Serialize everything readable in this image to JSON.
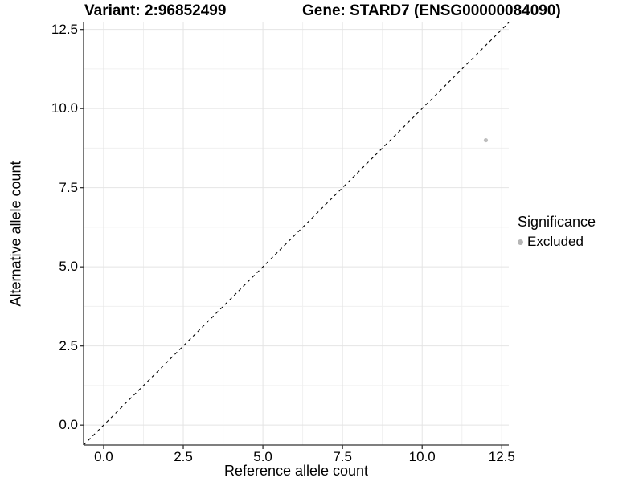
{
  "chart_data": {
    "type": "scatter",
    "titles": {
      "variant": "Variant: 2:96852499",
      "gene": "Gene: STARD7 (ENSG00000084090)"
    },
    "xlabel": "Reference allele count",
    "ylabel": "Alternative allele count",
    "xlim": [
      -0.63,
      12.72
    ],
    "ylim": [
      -0.63,
      12.72
    ],
    "x_ticks": {
      "values": [
        0,
        2.5,
        5,
        7.5,
        10,
        12.5
      ],
      "labels": [
        "0.0",
        "2.5",
        "5.0",
        "7.5",
        "10.0",
        "12.5"
      ]
    },
    "y_ticks": {
      "values": [
        0,
        2.5,
        5,
        7.5,
        10,
        12.5
      ],
      "labels": [
        "0.0",
        "2.5",
        "5.0",
        "7.5",
        "10.0",
        "12.5"
      ]
    },
    "x_minor": [
      1.25,
      3.75,
      6.25,
      8.75,
      11.25
    ],
    "y_minor": [
      1.25,
      3.75,
      6.25,
      8.75,
      11.25
    ],
    "grid": true,
    "points": [
      {
        "x": 12,
        "y": 9,
        "series": "Excluded",
        "color": "#bebebe"
      }
    ],
    "reference_line": {
      "type": "identity y=x",
      "style": "dashed",
      "color": "#000000"
    },
    "legend": {
      "title": "Significance",
      "position": "right",
      "entries": [
        {
          "label": "Excluded",
          "color": "#b5b5b5"
        }
      ]
    },
    "colors": {
      "background": "#ffffff",
      "grid_major": "#e4e4e4",
      "grid_minor": "#f0f0f0",
      "axis_line": "#333333",
      "text": "#000000",
      "point": "#bebebe"
    }
  }
}
